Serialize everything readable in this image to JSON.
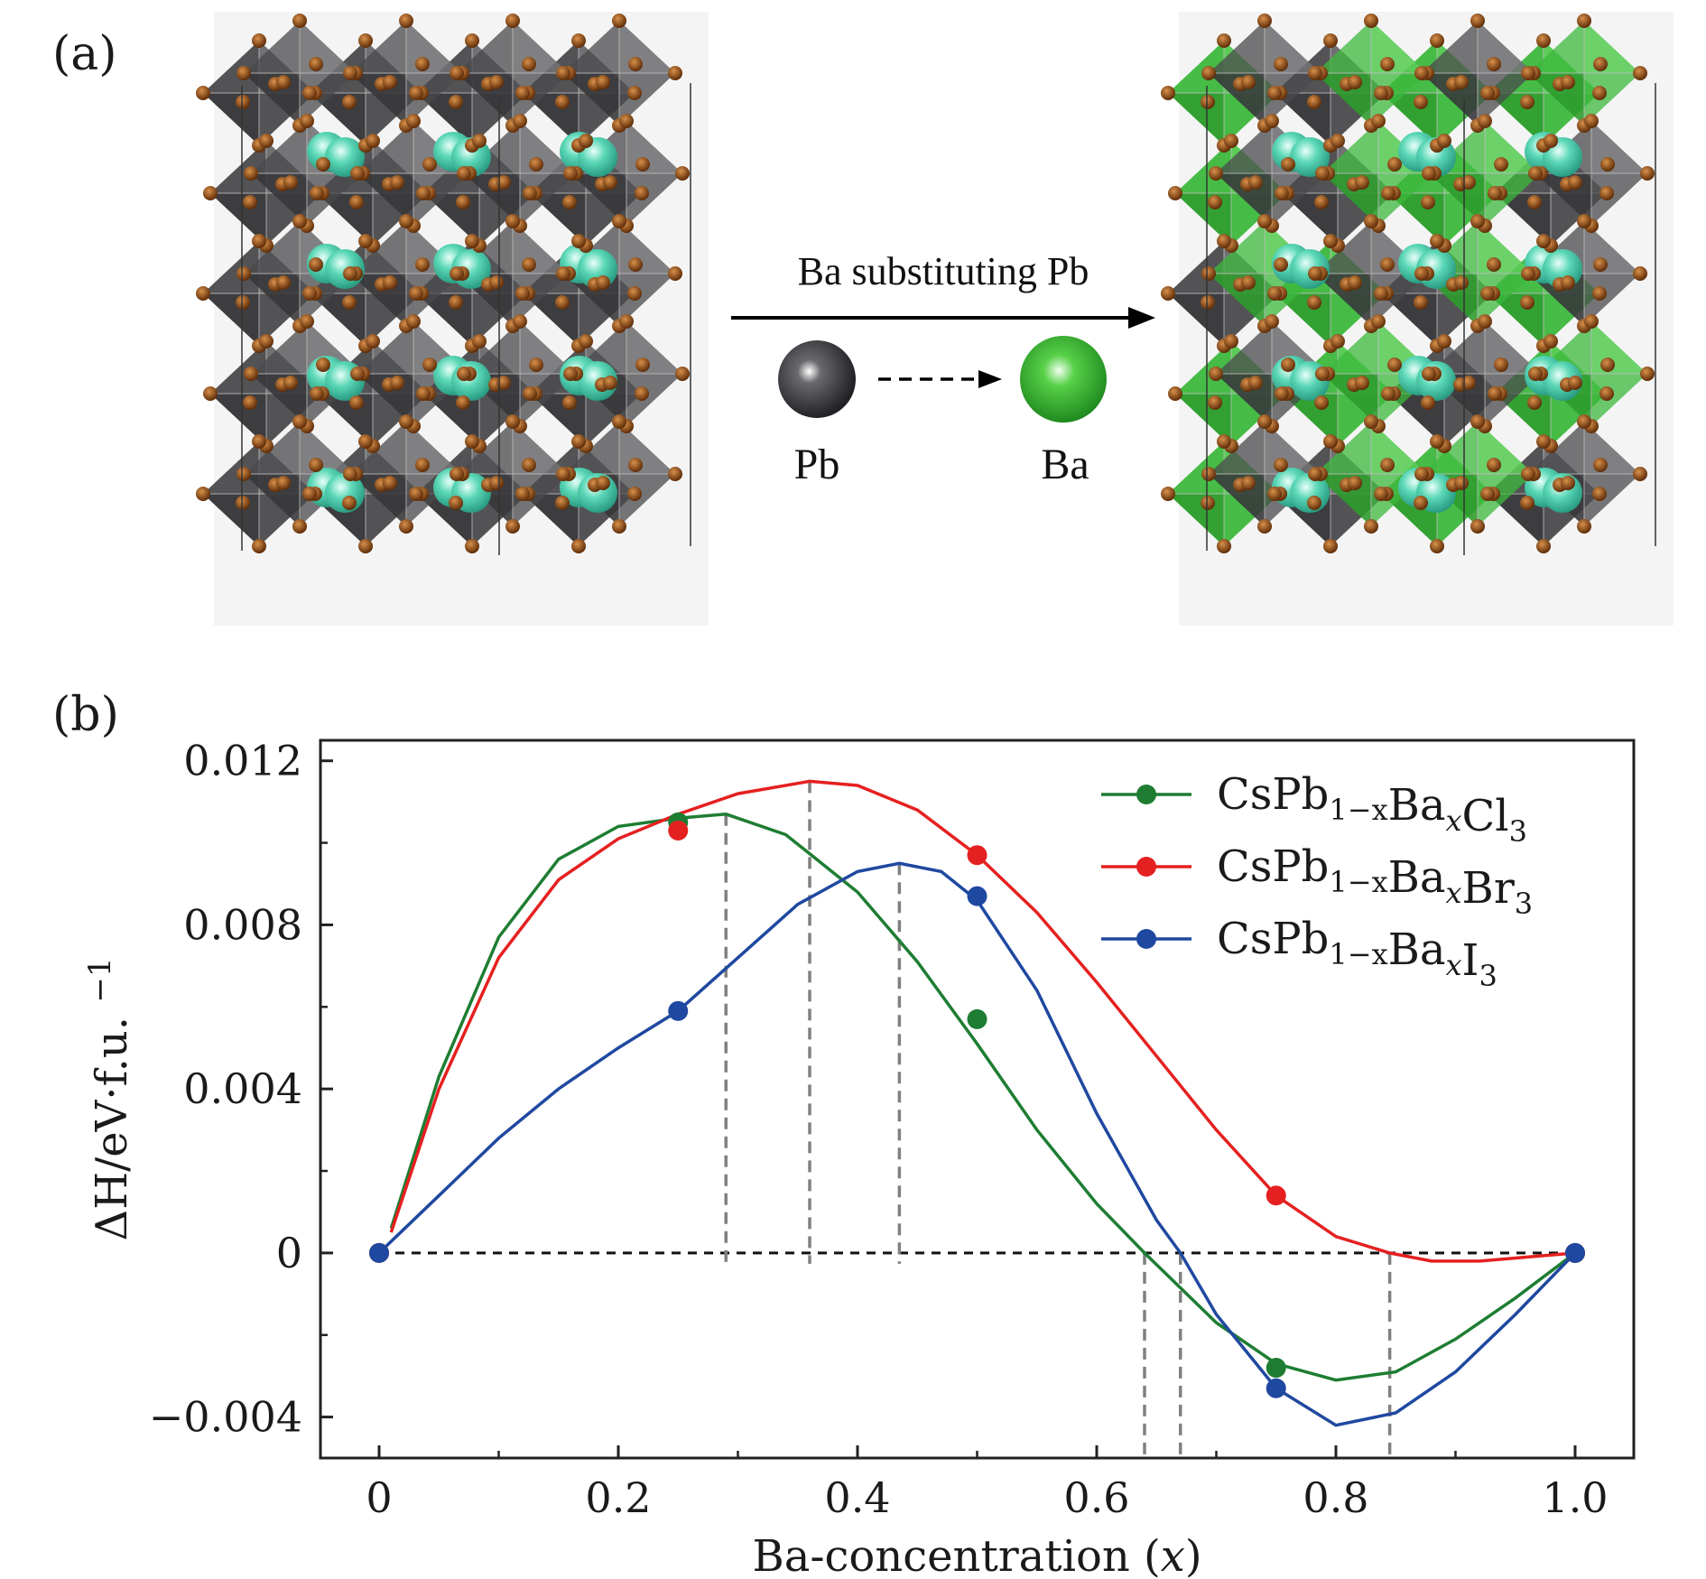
{
  "panel_a": {
    "label": "(a)",
    "arrow_text": "Ba substituting Pb",
    "from_atom": "Pb",
    "to_atom": "Ba",
    "colors": {
      "pb_octahedron": "#4a4a4c",
      "ba_octahedron": "#3cb83c",
      "halide": "#8a4412",
      "cs": "#55d4b4"
    }
  },
  "panel_b": {
    "label": "(b)"
  },
  "chart_data": {
    "type": "line",
    "xlabel": "Ba-concentration",
    "xlabel_var": "x",
    "ylabel": "ΔH/eV·f.u.",
    "ylabel_sup": "−1",
    "xlim": [
      0,
      1.0
    ],
    "ylim": [
      -0.005,
      0.0125
    ],
    "x_ticks": [
      {
        "v": 0,
        "label": "0"
      },
      {
        "v": 0.2,
        "label": "0.2"
      },
      {
        "v": 0.4,
        "label": "0.4"
      },
      {
        "v": 0.6,
        "label": "0.6"
      },
      {
        "v": 0.8,
        "label": "0.8"
      },
      {
        "v": 1.0,
        "label": "1.0"
      }
    ],
    "y_ticks": [
      {
        "v": -0.004,
        "label": "−0.004"
      },
      {
        "v": 0,
        "label": "0"
      },
      {
        "v": 0.004,
        "label": "0.004"
      },
      {
        "v": 0.008,
        "label": "0.008"
      },
      {
        "v": 0.012,
        "label": "0.012"
      }
    ],
    "legend_position": "top-right",
    "series": [
      {
        "name": "CsPb1−xBaxCl3",
        "legend": {
          "base": "CsPb",
          "sub1": "1−x",
          "mid": "Ba",
          "sub2": "x",
          "end": "Cl",
          "sub3": "3"
        },
        "color": "#1e7d32",
        "points": [
          [
            0,
            0
          ],
          [
            0.25,
            0.0105
          ],
          [
            0.5,
            0.0057
          ],
          [
            0.75,
            -0.0028
          ],
          [
            1.0,
            0
          ]
        ],
        "curve": [
          [
            0.01,
            0.0006
          ],
          [
            0.05,
            0.0043
          ],
          [
            0.1,
            0.0077
          ],
          [
            0.15,
            0.0096
          ],
          [
            0.2,
            0.0104
          ],
          [
            0.25,
            0.0106
          ],
          [
            0.29,
            0.0107
          ],
          [
            0.34,
            0.0102
          ],
          [
            0.4,
            0.0088
          ],
          [
            0.45,
            0.0071
          ],
          [
            0.5,
            0.0051
          ],
          [
            0.55,
            0.003
          ],
          [
            0.6,
            0.0012
          ],
          [
            0.64,
            0.0
          ],
          [
            0.7,
            -0.0017
          ],
          [
            0.75,
            -0.0027
          ],
          [
            0.8,
            -0.0031
          ],
          [
            0.85,
            -0.0029
          ],
          [
            0.9,
            -0.0021
          ],
          [
            0.95,
            -0.0011
          ],
          [
            1.0,
            0
          ]
        ]
      },
      {
        "name": "CsPb1−xBaxBr3",
        "legend": {
          "base": "CsPb",
          "sub1": "1−x",
          "mid": "Ba",
          "sub2": "x",
          "end": "Br",
          "sub3": "3"
        },
        "color": "#e52020",
        "points": [
          [
            0,
            0
          ],
          [
            0.25,
            0.0103
          ],
          [
            0.5,
            0.0097
          ],
          [
            0.75,
            0.0014
          ],
          [
            1.0,
            0
          ]
        ],
        "curve": [
          [
            0.01,
            0.0005
          ],
          [
            0.05,
            0.004
          ],
          [
            0.1,
            0.0072
          ],
          [
            0.15,
            0.0091
          ],
          [
            0.2,
            0.0101
          ],
          [
            0.25,
            0.0107
          ],
          [
            0.3,
            0.0112
          ],
          [
            0.36,
            0.0115
          ],
          [
            0.4,
            0.0114
          ],
          [
            0.45,
            0.0108
          ],
          [
            0.5,
            0.0097
          ],
          [
            0.55,
            0.0083
          ],
          [
            0.6,
            0.0066
          ],
          [
            0.65,
            0.0048
          ],
          [
            0.7,
            0.003
          ],
          [
            0.75,
            0.0014
          ],
          [
            0.8,
            0.0004
          ],
          [
            0.845,
            0.0
          ],
          [
            0.88,
            -0.0002
          ],
          [
            0.92,
            -0.0002
          ],
          [
            0.96,
            -0.0001
          ],
          [
            1.0,
            0
          ]
        ]
      },
      {
        "name": "CsPb1−xBaxI3",
        "legend": {
          "base": "CsPb",
          "sub1": "1−x",
          "mid": "Ba",
          "sub2": "x",
          "end": "I",
          "sub3": "3"
        },
        "color": "#1f48a0",
        "points": [
          [
            0,
            0
          ],
          [
            0.25,
            0.0059
          ],
          [
            0.5,
            0.0087
          ],
          [
            0.75,
            -0.0033
          ],
          [
            1.0,
            0
          ]
        ],
        "curve": [
          [
            0,
            0
          ],
          [
            0.05,
            0.0014
          ],
          [
            0.1,
            0.0028
          ],
          [
            0.15,
            0.004
          ],
          [
            0.2,
            0.005
          ],
          [
            0.25,
            0.0059
          ],
          [
            0.3,
            0.0072
          ],
          [
            0.35,
            0.0085
          ],
          [
            0.4,
            0.0093
          ],
          [
            0.435,
            0.0095
          ],
          [
            0.47,
            0.0093
          ],
          [
            0.5,
            0.0086
          ],
          [
            0.55,
            0.0064
          ],
          [
            0.6,
            0.0034
          ],
          [
            0.65,
            0.0008
          ],
          [
            0.67,
            0.0
          ],
          [
            0.7,
            -0.0015
          ],
          [
            0.75,
            -0.0033
          ],
          [
            0.8,
            -0.0042
          ],
          [
            0.85,
            -0.0039
          ],
          [
            0.9,
            -0.0029
          ],
          [
            0.95,
            -0.0015
          ],
          [
            1.0,
            0
          ]
        ]
      }
    ],
    "reference_lines": {
      "zero_line": 0,
      "vertical_markers": [
        {
          "x": 0.29,
          "y_top": 0.0107
        },
        {
          "x": 0.36,
          "y_top": 0.0115
        },
        {
          "x": 0.435,
          "y_top": 0.0095
        },
        {
          "x": 0.64,
          "y_bottom": -0.005
        },
        {
          "x": 0.67,
          "y_bottom": -0.005
        },
        {
          "x": 0.845,
          "y_bottom": -0.005
        }
      ]
    }
  }
}
